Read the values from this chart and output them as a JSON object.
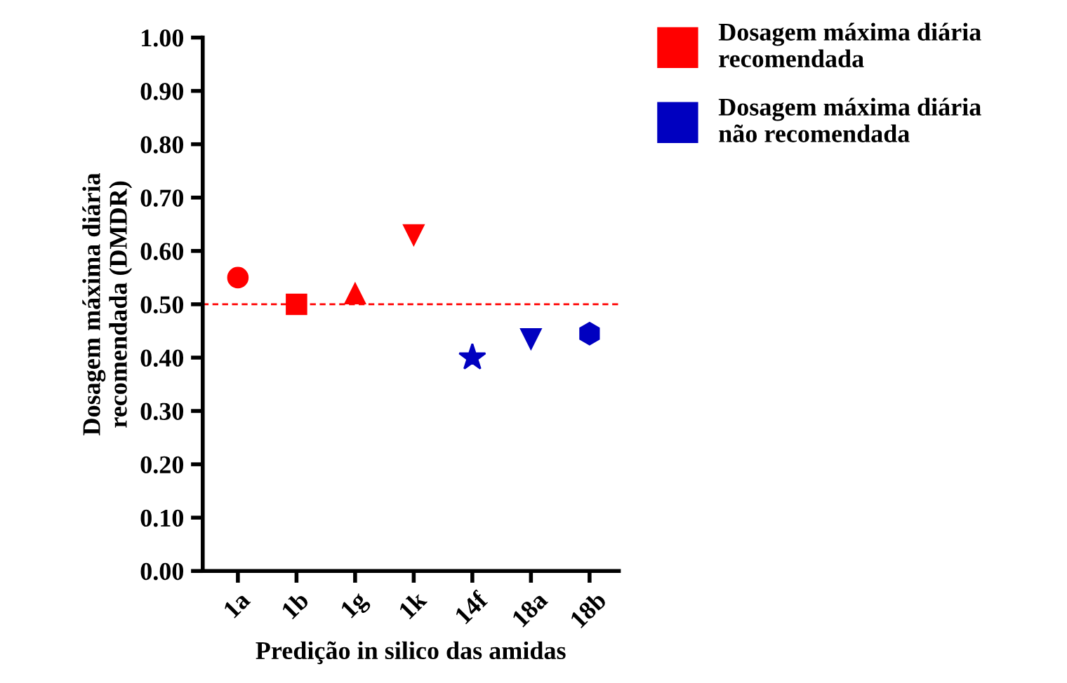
{
  "chart_data": {
    "type": "scatter",
    "xlabel": "Predição in silico das amidas",
    "ylabel": "Dosagem máxima diária\nrecomendada (DMDR)",
    "categories": [
      "1a",
      "1b",
      "1g",
      "1k",
      "14f",
      "18a",
      "18b"
    ],
    "series": [
      {
        "name": "Dosagem máxima diária\nrecomendada",
        "color": "#ff0000",
        "values": [
          0.55,
          0.5,
          0.52,
          0.63,
          null,
          null,
          null
        ]
      },
      {
        "name": "Dosagem máxima diária\nnão recomendada",
        "color": "#0000c0",
        "values": [
          null,
          null,
          null,
          null,
          0.4,
          0.435,
          0.445
        ]
      }
    ],
    "ylim": [
      0,
      1.0
    ],
    "yticks": [
      {
        "value": 0,
        "label": "0.00"
      },
      {
        "value": 0.1,
        "label": "0.10"
      },
      {
        "value": 0.2,
        "label": "0.20"
      },
      {
        "value": 0.3,
        "label": "0.30"
      },
      {
        "value": 0.4,
        "label": "0.40"
      },
      {
        "value": 0.5,
        "label": "0.50"
      },
      {
        "value": 0.6,
        "label": "0.60"
      },
      {
        "value": 0.7,
        "label": "0.70"
      },
      {
        "value": 0.8,
        "label": "0.80"
      },
      {
        "value": 0.9,
        "label": "0.90"
      },
      {
        "value": 1.0,
        "label": "1.00"
      }
    ],
    "ref_lines": [
      {
        "axis": "y",
        "value": 0.5,
        "color": "#ff0000",
        "line_style": "dashed"
      }
    ],
    "grid": false,
    "legend": "top right"
  }
}
